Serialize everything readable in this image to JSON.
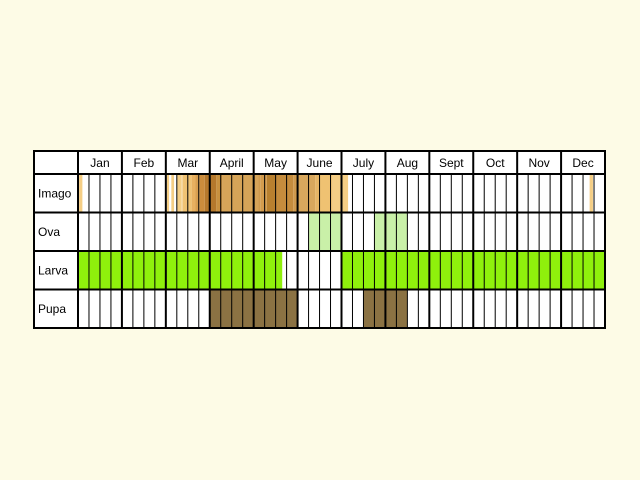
{
  "chart_data": {
    "type": "table",
    "title": "",
    "months": [
      "Jan",
      "Feb",
      "Mar",
      "April",
      "May",
      "June",
      "July",
      "Aug",
      "Sept",
      "Oct",
      "Nov",
      "Dec"
    ],
    "periods_per_month": 4,
    "rows": [
      {
        "name": "Imago",
        "bands": [
          {
            "start": 0.1,
            "end": 0.4,
            "color": "#f5ce85"
          },
          {
            "start": 8.1,
            "end": 8.3,
            "color": "#f5ce85"
          },
          {
            "start": 8.5,
            "end": 8.75,
            "color": "#f5ce85"
          },
          {
            "start": 9.0,
            "end": 9.45,
            "color": "#f5ce85"
          },
          {
            "start": 9.5,
            "end": 10.35,
            "color": "#f0c273"
          },
          {
            "start": 10.35,
            "end": 10.7,
            "color": "#e8b060"
          },
          {
            "start": 10.7,
            "end": 11.1,
            "color": "#d99f50"
          },
          {
            "start": 11.1,
            "end": 11.55,
            "color": "#cb8c3c"
          },
          {
            "start": 11.55,
            "end": 12.6,
            "color": "#b5782c"
          },
          {
            "start": 12.6,
            "end": 13.15,
            "color": "#c9913f"
          },
          {
            "start": 13.15,
            "end": 16.4,
            "color": "#d6a458"
          },
          {
            "start": 16.4,
            "end": 16.6,
            "color": "#cf9a4d"
          },
          {
            "start": 16.6,
            "end": 17.2,
            "color": "#d49c4e"
          },
          {
            "start": 17.2,
            "end": 18.0,
            "color": "#b9802f"
          },
          {
            "start": 18.0,
            "end": 19.6,
            "color": "#c58c3d"
          },
          {
            "start": 19.6,
            "end": 20.0,
            "color": "#d09a4c"
          },
          {
            "start": 20.0,
            "end": 21.6,
            "color": "#d8a75d"
          },
          {
            "start": 21.6,
            "end": 22.0,
            "color": "#e6b566"
          },
          {
            "start": 22.0,
            "end": 23.2,
            "color": "#efc272"
          },
          {
            "start": 23.2,
            "end": 24.0,
            "color": "#f5ce85"
          },
          {
            "start": 24.0,
            "end": 24.6,
            "color": "#f5ce85"
          },
          {
            "start": 46.6,
            "end": 46.9,
            "color": "#f5ce85"
          }
        ]
      },
      {
        "name": "Ova",
        "bands": [
          {
            "start": 21.0,
            "end": 24.0,
            "color": "#c9f0a8"
          },
          {
            "start": 27.0,
            "end": 30.0,
            "color": "#c9f0a8"
          }
        ]
      },
      {
        "name": "Larva",
        "bands": [
          {
            "start": 0.0,
            "end": 18.6,
            "color": "#8ff00c"
          },
          {
            "start": 24.0,
            "end": 48.0,
            "color": "#8ff00c"
          }
        ]
      },
      {
        "name": "Pupa",
        "bands": [
          {
            "start": 12.0,
            "end": 20.0,
            "color": "#8b7243"
          },
          {
            "start": 26.0,
            "end": 30.0,
            "color": "#8b7243"
          }
        ]
      }
    ]
  }
}
